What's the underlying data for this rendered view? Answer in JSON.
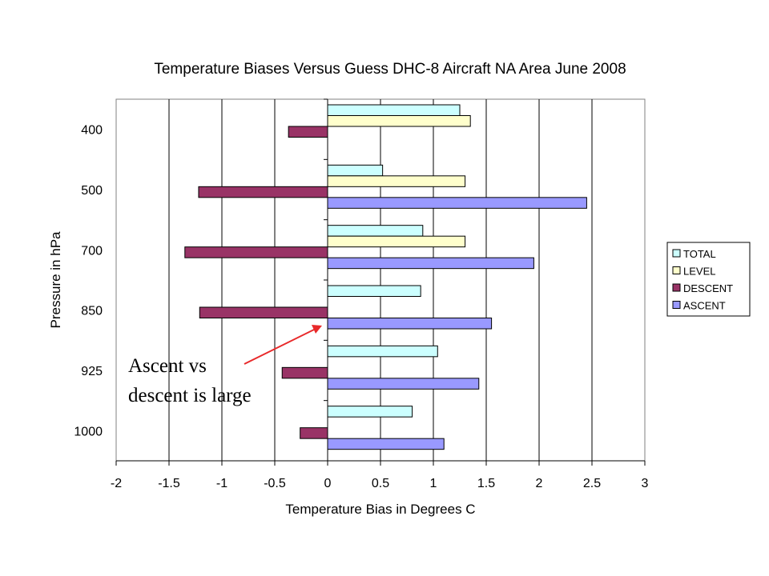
{
  "chart_data": {
    "type": "bar",
    "orientation": "horizontal",
    "title": "Temperature Biases Versus Guess DHC-8 Aircraft NA Area June 2008",
    "xlabel": "Temperature Bias in Degrees C",
    "ylabel": "Pressure in hPa",
    "categories": [
      "400",
      "500",
      "700",
      "850",
      "925",
      "1000"
    ],
    "xlim": [
      -2,
      3
    ],
    "xticks": [
      "-2",
      "-1.5",
      "-1",
      "-0.5",
      "0",
      "0.5",
      "1",
      "1.5",
      "2",
      "2.5",
      "3"
    ],
    "grid": "vertical",
    "legend_position": "right",
    "series": [
      {
        "name": "TOTAL",
        "color": "#ccffff",
        "values": [
          1.25,
          0.52,
          0.9,
          0.88,
          1.04,
          0.8
        ]
      },
      {
        "name": "LEVEL",
        "color": "#ffffcc",
        "values": [
          1.35,
          1.3,
          1.3,
          null,
          null,
          null
        ]
      },
      {
        "name": "DESCENT",
        "color": "#993366",
        "values": [
          -0.37,
          -1.22,
          -1.35,
          -1.21,
          -0.43,
          -0.26
        ]
      },
      {
        "name": "ASCENT",
        "color": "#9999ff",
        "values": [
          null,
          2.45,
          1.95,
          1.55,
          1.43,
          1.1
        ]
      }
    ],
    "annotation": {
      "lines": [
        "Ascent vs",
        "descent is large"
      ],
      "arrow_color": "#e8292a"
    }
  }
}
